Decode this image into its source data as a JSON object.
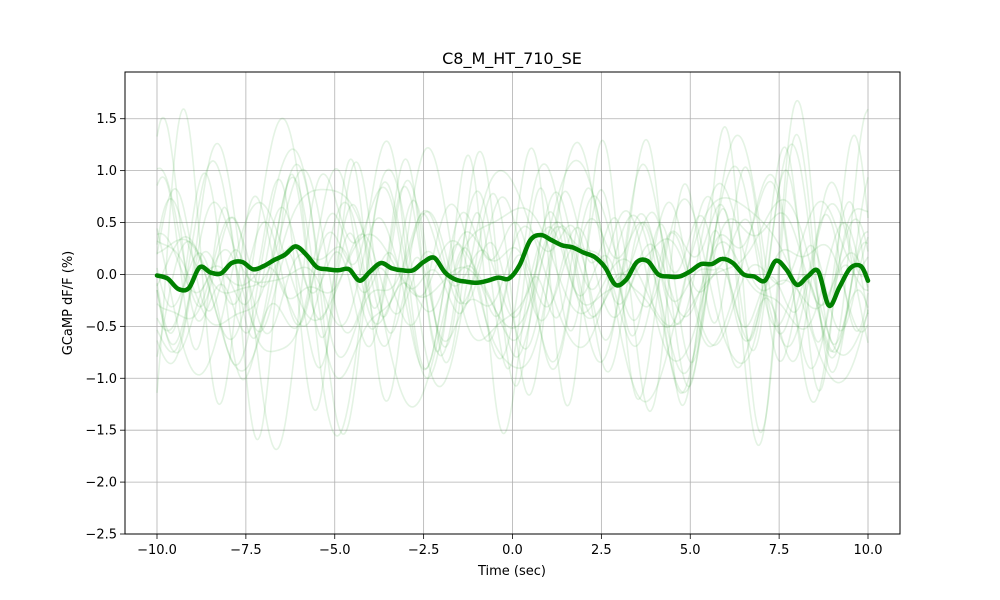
{
  "chart_data": {
    "type": "line",
    "title": "C8_M_HT_710_SE",
    "xlabel": "Time (sec)",
    "ylabel": "GCaMP dF/F (%)",
    "xlim": [
      -10.9,
      10.9
    ],
    "ylim": [
      -2.5,
      1.95
    ],
    "x_ticks": [
      -10.0,
      -7.5,
      -5.0,
      -2.5,
      0.0,
      2.5,
      5.0,
      7.5,
      10.0
    ],
    "x_tick_labels": [
      "−10.0",
      "−7.5",
      "−5.0",
      "−2.5",
      "0.0",
      "2.5",
      "5.0",
      "7.5",
      "10.0"
    ],
    "y_ticks": [
      -2.5,
      -2.0,
      -1.5,
      -1.0,
      -0.5,
      0.0,
      0.5,
      1.0,
      1.5
    ],
    "y_tick_labels": [
      "−2.5",
      "−2.0",
      "−1.5",
      "−1.0",
      "−0.5",
      "0.0",
      "0.5",
      "1.0",
      "1.5"
    ],
    "grid": true,
    "colors": {
      "mean": "#008000",
      "trials": "#2ca02c",
      "grid": "#b0b0b0",
      "axes": "#000000"
    },
    "trial_count": 20,
    "trial_amplitude": 0.75,
    "mean_series": {
      "x": [
        -10.0,
        -9.7,
        -9.4,
        -9.1,
        -8.8,
        -8.5,
        -8.2,
        -7.9,
        -7.6,
        -7.3,
        -7.0,
        -6.7,
        -6.4,
        -6.1,
        -5.8,
        -5.5,
        -5.2,
        -4.9,
        -4.6,
        -4.3,
        -4.0,
        -3.7,
        -3.4,
        -3.1,
        -2.8,
        -2.5,
        -2.2,
        -1.9,
        -1.6,
        -1.3,
        -1.0,
        -0.7,
        -0.4,
        -0.1,
        0.2,
        0.5,
        0.8,
        1.1,
        1.4,
        1.7,
        2.0,
        2.3,
        2.6,
        2.9,
        3.2,
        3.5,
        3.8,
        4.1,
        4.4,
        4.7,
        5.0,
        5.3,
        5.6,
        5.9,
        6.2,
        6.5,
        6.8,
        7.1,
        7.4,
        7.7,
        8.0,
        8.3,
        8.6,
        8.9,
        9.2,
        9.5,
        9.8,
        10.0
      ],
      "y": [
        -0.01,
        -0.04,
        -0.14,
        -0.13,
        0.07,
        0.02,
        0.01,
        0.11,
        0.12,
        0.05,
        0.08,
        0.14,
        0.19,
        0.27,
        0.19,
        0.07,
        0.05,
        0.04,
        0.05,
        -0.06,
        0.03,
        0.11,
        0.06,
        0.04,
        0.04,
        0.12,
        0.16,
        0.02,
        -0.05,
        -0.07,
        -0.08,
        -0.06,
        -0.03,
        -0.04,
        0.09,
        0.33,
        0.38,
        0.33,
        0.28,
        0.26,
        0.21,
        0.17,
        0.07,
        -0.1,
        -0.05,
        0.12,
        0.13,
        0.0,
        -0.02,
        -0.02,
        0.03,
        0.1,
        0.1,
        0.15,
        0.11,
        0.0,
        -0.02,
        -0.06,
        0.13,
        0.05,
        -0.1,
        -0.02,
        0.03,
        -0.3,
        -0.12,
        0.06,
        0.08,
        -0.06
      ]
    }
  }
}
